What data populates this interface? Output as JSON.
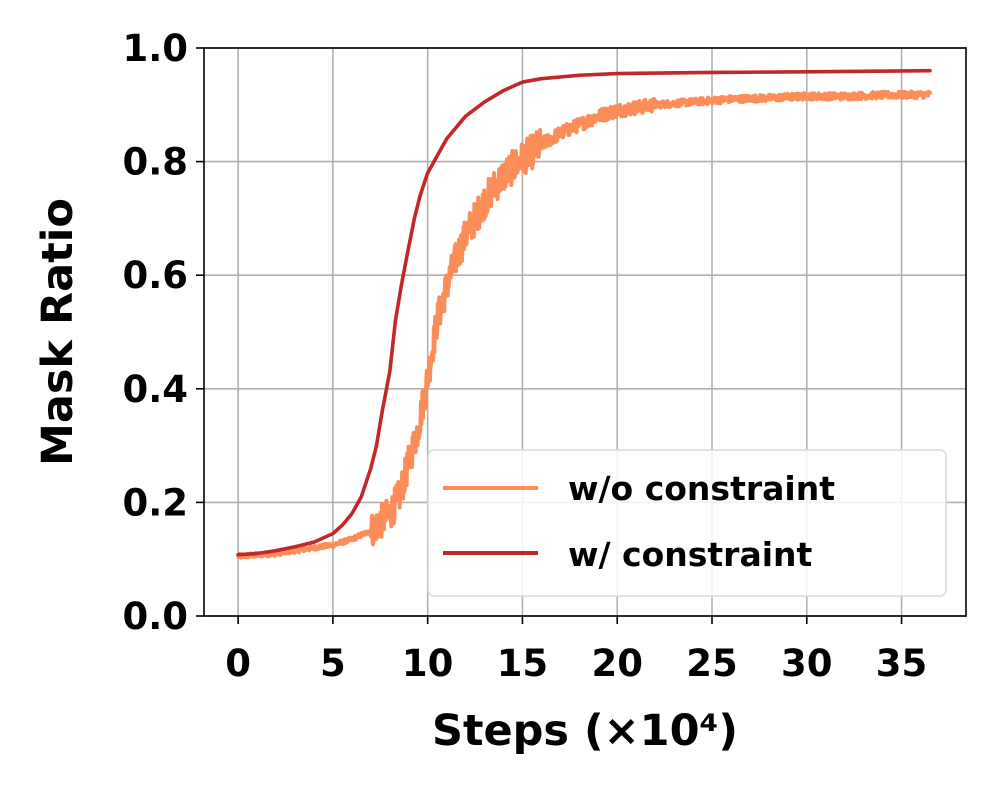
{
  "chart_data": {
    "type": "line",
    "title": "",
    "xlabel": "Steps (×10⁴)",
    "ylabel": "Mask Ratio",
    "xlim": [
      -1.8,
      38.4
    ],
    "ylim": [
      0.0,
      1.0
    ],
    "xticks": [
      0,
      5,
      10,
      15,
      20,
      25,
      30,
      35
    ],
    "yticks": [
      0.0,
      0.2,
      0.4,
      0.6,
      0.8,
      1.0
    ],
    "xtick_labels": [
      "0",
      "5",
      "10",
      "15",
      "20",
      "25",
      "30",
      "35"
    ],
    "ytick_labels": [
      "0.0",
      "0.2",
      "0.4",
      "0.6",
      "0.8",
      "1.0"
    ],
    "grid": true,
    "legend_position": "lower-right",
    "series": [
      {
        "name": "w/o constraint",
        "color": "#FC8D59",
        "noisy": true,
        "x": [
          0,
          2,
          4,
          5,
          6,
          7,
          7.5,
          8,
          8.5,
          9,
          9.5,
          10,
          10.5,
          11,
          11.5,
          12,
          12.5,
          13,
          13.5,
          14,
          15,
          16,
          17,
          18,
          19,
          20,
          22,
          24,
          26,
          28,
          30,
          32,
          34,
          36.5
        ],
        "y": [
          0.105,
          0.11,
          0.12,
          0.125,
          0.135,
          0.15,
          0.165,
          0.18,
          0.21,
          0.27,
          0.33,
          0.42,
          0.52,
          0.58,
          0.63,
          0.67,
          0.7,
          0.73,
          0.755,
          0.775,
          0.805,
          0.83,
          0.85,
          0.865,
          0.88,
          0.89,
          0.9,
          0.905,
          0.91,
          0.912,
          0.915,
          0.915,
          0.917,
          0.918
        ]
      },
      {
        "name": "w/ constraint",
        "color": "#C0282A",
        "noisy": false,
        "x": [
          0,
          1,
          2,
          3,
          4,
          5,
          5.5,
          6,
          6.5,
          7,
          7.3,
          7.6,
          8,
          8.3,
          8.6,
          9,
          9.3,
          9.6,
          10,
          10.5,
          11,
          12,
          13,
          14,
          15,
          16,
          18,
          20,
          25,
          30,
          36.5
        ],
        "y": [
          0.108,
          0.11,
          0.115,
          0.122,
          0.13,
          0.145,
          0.16,
          0.18,
          0.21,
          0.26,
          0.3,
          0.36,
          0.43,
          0.52,
          0.58,
          0.65,
          0.7,
          0.74,
          0.78,
          0.81,
          0.84,
          0.88,
          0.905,
          0.925,
          0.94,
          0.946,
          0.952,
          0.955,
          0.957,
          0.958,
          0.96
        ]
      }
    ]
  }
}
